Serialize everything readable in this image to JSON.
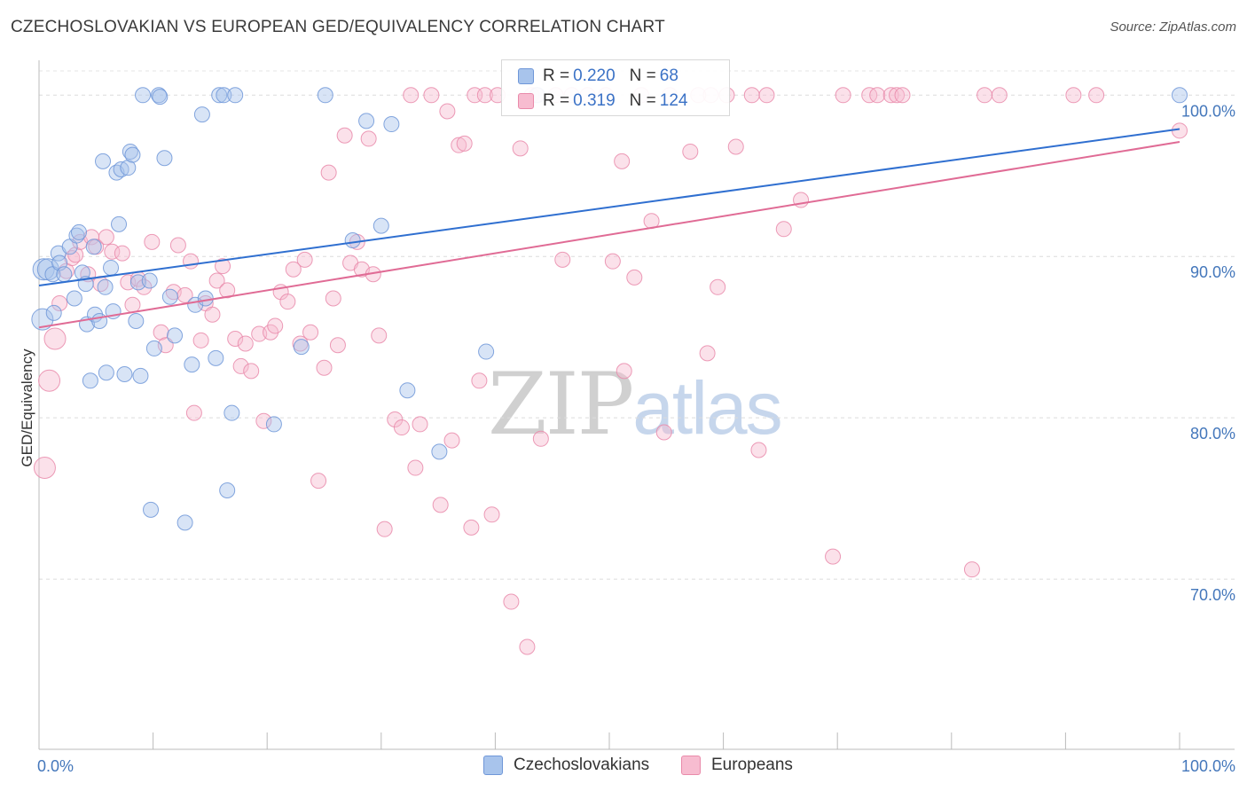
{
  "title": "CZECHOSLOVAKIAN VS EUROPEAN GED/EQUIVALENCY CORRELATION CHART",
  "source": "Source: ZipAtlas.com",
  "watermark": {
    "zip": "ZIP",
    "atlas": "atlas"
  },
  "legend": {
    "rows": [
      {
        "r_label": "R =",
        "r_value": "0.220",
        "n_label": "N =",
        "n_value": "68",
        "color": "#a8c4ec",
        "border": "#6f97d8"
      },
      {
        "r_label": "R =",
        "r_value": "0.319",
        "n_label": "N =",
        "n_value": "124",
        "color": "#f7bcd0",
        "border": "#e98aaa"
      }
    ]
  },
  "bottom_legend": [
    {
      "label": "Czechoslovakians",
      "color": "#a8c4ec",
      "border": "#6f97d8"
    },
    {
      "label": "Europeans",
      "color": "#f7bcd0",
      "border": "#e98aaa"
    }
  ],
  "chart_data": {
    "type": "scatter",
    "title": "CZECHOSLOVAKIAN VS EUROPEAN GED/EQUIVALENCY CORRELATION CHART",
    "xlabel": "",
    "ylabel": "GED/Equivalency",
    "xlim": [
      0,
      100
    ],
    "ylim": [
      60,
      101.5
    ],
    "x_tick_labels": [
      {
        "value": 0,
        "label": "0.0%"
      },
      {
        "value": 100,
        "label": "100.0%"
      }
    ],
    "y_tick_labels": [
      {
        "value": 100,
        "label": "100.0%"
      },
      {
        "value": 90,
        "label": "90.0%"
      },
      {
        "value": 80,
        "label": "80.0%"
      },
      {
        "value": 70,
        "label": "70.0%"
      }
    ],
    "grid": true,
    "series": [
      {
        "name": "Czechoslovakians",
        "color": "#6f97d8",
        "fill": "#a8c4ec",
        "trend": {
          "x": [
            0,
            100
          ],
          "y": [
            88.2,
            97.9
          ],
          "color": "#2f6fd0"
        },
        "points": [
          [
            0.3,
            86.1
          ],
          [
            0.4,
            89.2
          ],
          [
            0.8,
            89.2
          ],
          [
            1.2,
            88.9
          ],
          [
            1.3,
            86.5
          ],
          [
            1.7,
            90.2
          ],
          [
            1.8,
            89.6
          ],
          [
            2.2,
            88.9
          ],
          [
            2.7,
            90.6
          ],
          [
            3.1,
            87.4
          ],
          [
            3.3,
            91.3
          ],
          [
            3.5,
            91.5
          ],
          [
            3.8,
            89
          ],
          [
            4.1,
            88.3
          ],
          [
            4.2,
            85.8
          ],
          [
            4.5,
            82.3
          ],
          [
            4.8,
            90.6
          ],
          [
            4.9,
            86.4
          ],
          [
            5.3,
            86
          ],
          [
            5.6,
            95.9
          ],
          [
            5.8,
            88.1
          ],
          [
            5.9,
            82.8
          ],
          [
            6.3,
            89.3
          ],
          [
            6.5,
            86.6
          ],
          [
            6.8,
            95.2
          ],
          [
            7,
            92
          ],
          [
            7.2,
            95.4
          ],
          [
            7.5,
            82.7
          ],
          [
            7.8,
            95.5
          ],
          [
            8,
            96.5
          ],
          [
            8.2,
            96.3
          ],
          [
            8.5,
            86
          ],
          [
            8.7,
            88.4
          ],
          [
            8.9,
            82.6
          ],
          [
            9.1,
            100
          ],
          [
            9.7,
            88.5
          ],
          [
            9.8,
            74.3
          ],
          [
            10.1,
            84.3
          ],
          [
            10.5,
            100
          ],
          [
            10.6,
            99.9
          ],
          [
            11,
            96.1
          ],
          [
            11.5,
            87.5
          ],
          [
            11.9,
            85.1
          ],
          [
            12.8,
            73.5
          ],
          [
            13.4,
            83.3
          ],
          [
            13.7,
            87
          ],
          [
            14.3,
            98.8
          ],
          [
            14.6,
            87.4
          ],
          [
            15.5,
            83.7
          ],
          [
            15.8,
            100
          ],
          [
            16.2,
            100
          ],
          [
            16.5,
            75.5
          ],
          [
            16.9,
            80.3
          ],
          [
            17.2,
            100
          ],
          [
            20.6,
            79.6
          ],
          [
            23,
            84.4
          ],
          [
            25.1,
            100
          ],
          [
            27.5,
            91
          ],
          [
            28.7,
            98.4
          ],
          [
            30,
            91.9
          ],
          [
            30.9,
            98.2
          ],
          [
            32.3,
            81.7
          ],
          [
            35.1,
            77.9
          ],
          [
            39.2,
            84.1
          ],
          [
            43.7,
            100
          ],
          [
            100,
            100
          ]
        ]
      },
      {
        "name": "Europeans",
        "color": "#e98aaa",
        "fill": "#f7bcd0",
        "trend": {
          "x": [
            0,
            100
          ],
          "y": [
            85.6,
            97.1
          ],
          "color": "#e06b95"
        },
        "points": [
          [
            0.5,
            76.9
          ],
          [
            0.9,
            82.3
          ],
          [
            1.4,
            84.9
          ],
          [
            1.8,
            87.1
          ],
          [
            2.4,
            89.1
          ],
          [
            2.9,
            89.9
          ],
          [
            3.2,
            90.1
          ],
          [
            3.6,
            90.9
          ],
          [
            4.3,
            88.9
          ],
          [
            4.6,
            91.2
          ],
          [
            5,
            90.6
          ],
          [
            5.4,
            88.3
          ],
          [
            5.9,
            91.2
          ],
          [
            6.4,
            90.3
          ],
          [
            7.3,
            90.2
          ],
          [
            7.8,
            88.4
          ],
          [
            8.2,
            87
          ],
          [
            8.7,
            88.6
          ],
          [
            9.2,
            88.1
          ],
          [
            9.9,
            90.9
          ],
          [
            10.7,
            85.3
          ],
          [
            11.1,
            84.5
          ],
          [
            11.8,
            87.8
          ],
          [
            12.2,
            90.7
          ],
          [
            12.8,
            87.6
          ],
          [
            13.3,
            89.7
          ],
          [
            13.6,
            80.3
          ],
          [
            14.2,
            84.8
          ],
          [
            14.6,
            87.1
          ],
          [
            15.2,
            86.4
          ],
          [
            15.6,
            88.5
          ],
          [
            16.1,
            89.4
          ],
          [
            16.5,
            87.9
          ],
          [
            17.2,
            84.9
          ],
          [
            17.7,
            83.2
          ],
          [
            18.1,
            84.6
          ],
          [
            18.6,
            82.9
          ],
          [
            19.3,
            85.2
          ],
          [
            19.7,
            79.8
          ],
          [
            20.3,
            85.3
          ],
          [
            20.7,
            85.7
          ],
          [
            21.2,
            87.8
          ],
          [
            21.8,
            87.2
          ],
          [
            22.3,
            89.2
          ],
          [
            22.9,
            84.6
          ],
          [
            23.3,
            89.8
          ],
          [
            23.8,
            85.3
          ],
          [
            24.5,
            76.1
          ],
          [
            25,
            83.1
          ],
          [
            25.4,
            95.2
          ],
          [
            25.8,
            87.4
          ],
          [
            26.2,
            84.5
          ],
          [
            26.8,
            97.5
          ],
          [
            27.3,
            89.6
          ],
          [
            27.9,
            90.9
          ],
          [
            28.3,
            89.2
          ],
          [
            28.9,
            97.3
          ],
          [
            29.3,
            88.9
          ],
          [
            29.8,
            85.1
          ],
          [
            30.3,
            73.1
          ],
          [
            31.2,
            79.9
          ],
          [
            31.8,
            79.4
          ],
          [
            32.6,
            100
          ],
          [
            33,
            76.9
          ],
          [
            33.4,
            79.6
          ],
          [
            34.4,
            100
          ],
          [
            35.2,
            74.6
          ],
          [
            35.8,
            99
          ],
          [
            36.2,
            78.6
          ],
          [
            36.8,
            96.9
          ],
          [
            37.3,
            97
          ],
          [
            37.9,
            73.2
          ],
          [
            38.2,
            100
          ],
          [
            38.6,
            82.3
          ],
          [
            39.1,
            100
          ],
          [
            39.7,
            74
          ],
          [
            40.2,
            100
          ],
          [
            41.4,
            68.6
          ],
          [
            42.2,
            96.7
          ],
          [
            42.8,
            65.8
          ],
          [
            43.2,
            100
          ],
          [
            43.6,
            100
          ],
          [
            44,
            78.7
          ],
          [
            45.3,
            100
          ],
          [
            45.9,
            89.8
          ],
          [
            46.7,
            100
          ],
          [
            48.1,
            100
          ],
          [
            49.7,
            100
          ],
          [
            50.3,
            89.7
          ],
          [
            51.1,
            95.9
          ],
          [
            51.3,
            82.9
          ],
          [
            52.2,
            88.7
          ],
          [
            52.8,
            100
          ],
          [
            53.7,
            92.2
          ],
          [
            54.8,
            79.1
          ],
          [
            55.3,
            100
          ],
          [
            57.1,
            96.5
          ],
          [
            57.8,
            100
          ],
          [
            58.6,
            84
          ],
          [
            58.9,
            100
          ],
          [
            59.5,
            88.1
          ],
          [
            60.3,
            100
          ],
          [
            61.1,
            96.8
          ],
          [
            62.5,
            100
          ],
          [
            63.1,
            78
          ],
          [
            63.8,
            100
          ],
          [
            65.3,
            91.7
          ],
          [
            66.8,
            93.5
          ],
          [
            69.6,
            71.4
          ],
          [
            70.5,
            100
          ],
          [
            72.8,
            100
          ],
          [
            73.5,
            100
          ],
          [
            74.7,
            100
          ],
          [
            75.2,
            100
          ],
          [
            75.7,
            100
          ],
          [
            81.8,
            70.6
          ],
          [
            82.9,
            100
          ],
          [
            84.2,
            100
          ],
          [
            90.7,
            100
          ],
          [
            92.7,
            100
          ],
          [
            100,
            97.8
          ]
        ]
      }
    ]
  }
}
